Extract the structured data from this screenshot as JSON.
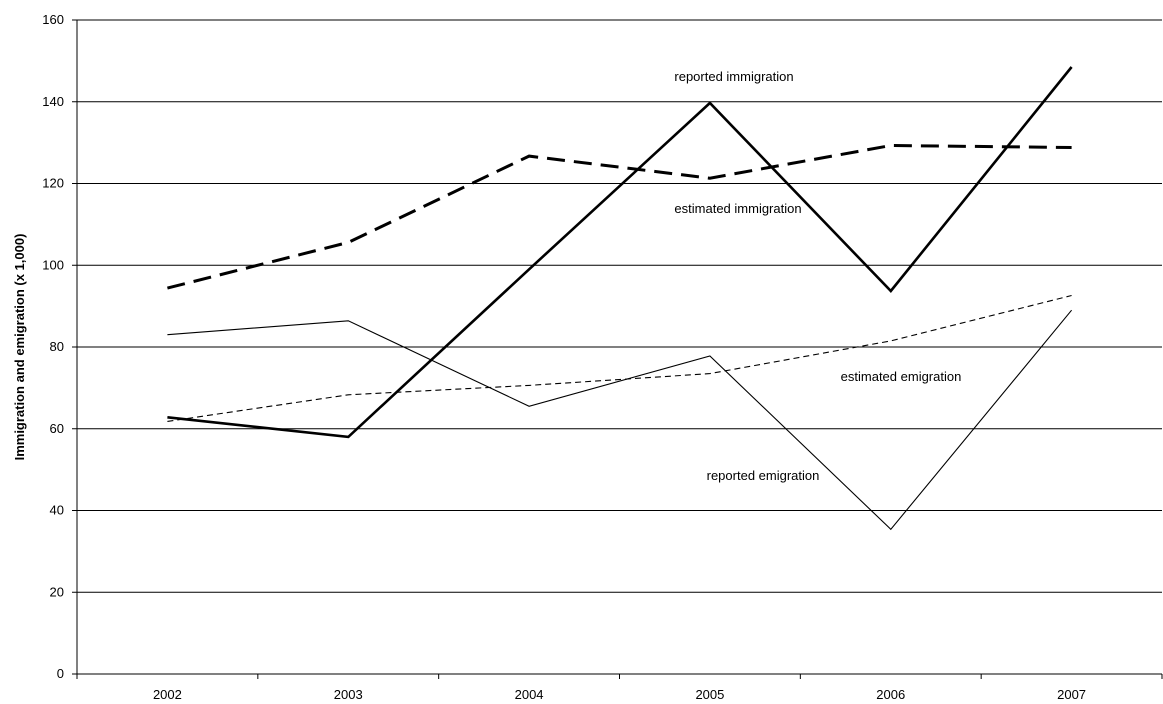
{
  "chart_data": {
    "type": "line",
    "x": [
      "2002",
      "2003",
      "2004",
      "2005",
      "2006",
      "2007"
    ],
    "ylabel": "Immigration and emigration (x 1,000)",
    "xlabel": "",
    "ylim": [
      0,
      160
    ],
    "yticks": [
      "0",
      "20",
      "40",
      "60",
      "80",
      "100",
      "120",
      "140",
      "160"
    ],
    "grid": "horizontal",
    "series": [
      {
        "name": "reported immigration",
        "style": "solid-thick",
        "color": "#000000",
        "values": [
          62.8,
          58.0,
          99.0,
          139.7,
          93.7,
          148.5
        ]
      },
      {
        "name": "estimated immigration",
        "style": "dashed-thick",
        "color": "#000000",
        "values": [
          94.4,
          105.6,
          126.7,
          121.3,
          129.3,
          128.8
        ]
      },
      {
        "name": "reported emigration",
        "style": "solid-thin",
        "color": "#000000",
        "values": [
          83.0,
          86.4,
          65.5,
          77.8,
          35.4,
          89.0
        ]
      },
      {
        "name": "estimated emigration",
        "style": "dashed-thin",
        "color": "#000000",
        "values": [
          61.8,
          68.3,
          70.6,
          73.5,
          81.5,
          92.6
        ]
      }
    ]
  }
}
